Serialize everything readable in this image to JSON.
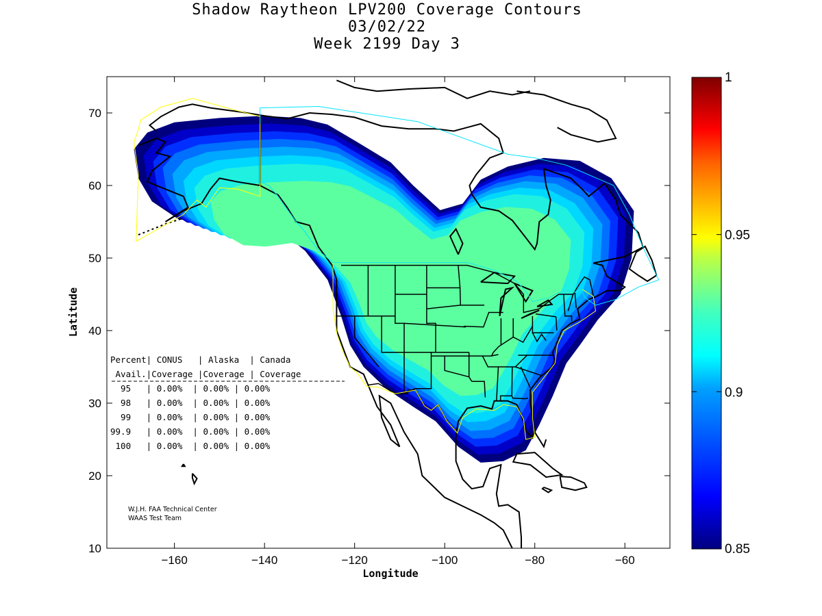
{
  "title": {
    "line1": "Shadow Raytheon LPV200 Coverage Contours",
    "line2": "03/02/22",
    "line3": "Week 2199 Day 3"
  },
  "axes": {
    "xlabel": "Longitude",
    "ylabel": "Latitude",
    "xlim": [
      -175,
      -50
    ],
    "ylim": [
      10,
      75
    ],
    "xticks": [
      -160,
      -140,
      -120,
      -100,
      -80,
      -60
    ],
    "yticks": [
      10,
      20,
      30,
      40,
      50,
      60,
      70
    ]
  },
  "colorbar": {
    "range": [
      0.85,
      1
    ],
    "ticks": [
      "0.85",
      "0.9",
      "0.95",
      "1"
    ],
    "colormap": "jet"
  },
  "table": {
    "header1": "Percent| CONUS   | Alaska  | Canada",
    "header2": " Avail.|Coverage |Coverage | Coverage",
    "rows": [
      "  95   | 0.00%  | 0.00% | 0.00%",
      "  98   | 0.00%  | 0.00% | 0.00%",
      "  99   | 0.00%  | 0.00% | 0.00%",
      "99.9   | 0.00%  | 0.00% | 0.00%",
      " 100   | 0.00%  | 0.00% | 0.00%"
    ]
  },
  "credit": {
    "line1": "W.J.H. FAA Technical Center",
    "line2": "WAAS Test Team"
  },
  "colors": {
    "coverage_levels": [
      "#00007f",
      "#0000c8",
      "#0030ff",
      "#0070ff",
      "#00a8ff",
      "#00d8ff",
      "#20f0e0",
      "#5cffa0"
    ],
    "service_boundary_yellow": "#ffff00",
    "service_boundary_cyan": "#00e5ff"
  },
  "chart_data": {
    "type": "heatmap",
    "title": "Shadow Raytheon LPV200 Coverage Contours",
    "xlabel": "Longitude",
    "ylabel": "Latitude",
    "xlim": [
      -175,
      -50
    ],
    "ylim": [
      10,
      75
    ],
    "value_range": [
      0.85,
      1
    ],
    "contour_levels": [
      0.85,
      0.86,
      0.87,
      0.88,
      0.89,
      0.9,
      0.91,
      0.92
    ],
    "peak_region_value": 0.92,
    "coverage_regions": [
      {
        "name": "north_america_band",
        "outer_lon_range": [
          -169,
          -58
        ],
        "outer_lat_range": [
          22,
          69
        ]
      }
    ]
  }
}
